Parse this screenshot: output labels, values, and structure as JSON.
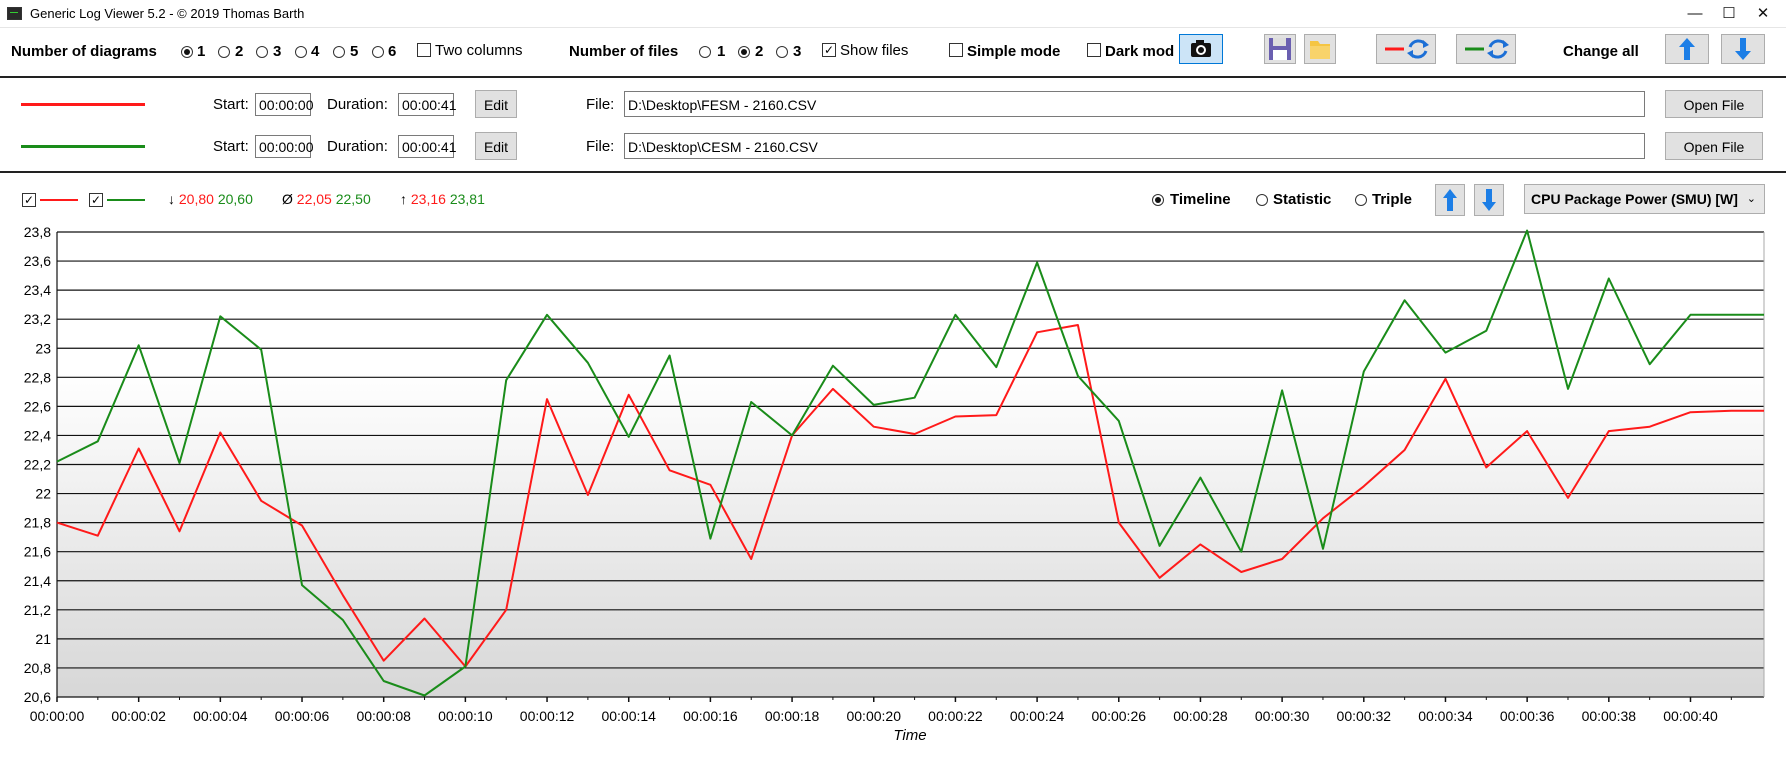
{
  "window": {
    "title": "Generic Log Viewer 5.2 - © 2019 Thomas Barth"
  },
  "toolbar": {
    "num_diagrams_label": "Number of diagrams",
    "diagram_options": [
      "1",
      "2",
      "3",
      "4",
      "5",
      "6"
    ],
    "diagram_selected": "1",
    "two_columns_label": "Two columns",
    "num_files_label": "Number of files",
    "file_options": [
      "1",
      "2",
      "3"
    ],
    "file_selected": "2",
    "show_files_label": "Show files",
    "simple_mode_label": "Simple mode",
    "dark_mode_label": "Dark mod",
    "change_all_label": "Change all"
  },
  "files": [
    {
      "color": "#ff1a1a",
      "start_label": "Start:",
      "start": "00:00:00",
      "duration_label": "Duration:",
      "duration": "00:00:41",
      "edit_label": "Edit",
      "file_label": "File:",
      "path": "D:\\Desktop\\FESM - 2160.CSV",
      "open_label": "Open File"
    },
    {
      "color": "#1a8c1a",
      "start_label": "Start:",
      "start": "00:00:00",
      "duration_label": "Duration:",
      "duration": "00:00:41",
      "edit_label": "Edit",
      "file_label": "File:",
      "path": "D:\\Desktop\\CESM - 2160.CSV",
      "open_label": "Open File"
    }
  ],
  "stats": {
    "min_symbol": "↓",
    "min_red": "20,80",
    "min_green": "20,60",
    "avg_symbol": "Ø",
    "avg_red": "22,05",
    "avg_green": "22,50",
    "max_symbol": "↑",
    "max_red": "23,16",
    "max_green": "23,81"
  },
  "view_modes": {
    "options": [
      "Timeline",
      "Statistic",
      "Triple"
    ],
    "selected": "Timeline"
  },
  "sensor_select": {
    "value": "CPU Package Power (SMU) [W]"
  },
  "colors": {
    "red": "#ff1a1a",
    "green": "#1a8c1a"
  },
  "chart_data": {
    "type": "line",
    "xlabel": "Time",
    "ylim": [
      20.6,
      23.8
    ],
    "xlim": [
      0,
      41.8
    ],
    "y_ticks": [
      "23,8",
      "23,6",
      "23,4",
      "23,2",
      "23",
      "22,8",
      "22,6",
      "22,4",
      "22,2",
      "22",
      "21,8",
      "21,6",
      "21,4",
      "21,2",
      "21",
      "20,8",
      "20,6"
    ],
    "x_ticks": [
      "00:00:00",
      "00:00:02",
      "00:00:04",
      "00:00:06",
      "00:00:08",
      "00:00:10",
      "00:00:12",
      "00:00:14",
      "00:00:16",
      "00:00:18",
      "00:00:20",
      "00:00:22",
      "00:00:24",
      "00:00:26",
      "00:00:28",
      "00:00:30",
      "00:00:32",
      "00:00:34",
      "00:00:36",
      "00:00:38",
      "00:00:40"
    ],
    "x": [
      0,
      1,
      2,
      3,
      4,
      5,
      6,
      7,
      8,
      9,
      10,
      11,
      12,
      13,
      14,
      15,
      16,
      17,
      18,
      19,
      20,
      21,
      22,
      23,
      24,
      25,
      26,
      27,
      28,
      29,
      30,
      31,
      32,
      33,
      34,
      35,
      36,
      37,
      38,
      39,
      40,
      41,
      41.8
    ],
    "series": [
      {
        "color": "red",
        "values": [
          21.8,
          21.71,
          22.31,
          21.74,
          22.42,
          21.95,
          21.78,
          21.3,
          20.85,
          21.14,
          20.81,
          21.2,
          22.65,
          21.99,
          22.68,
          22.16,
          22.06,
          21.55,
          22.4,
          22.72,
          22.46,
          22.41,
          22.53,
          22.54,
          23.11,
          23.16,
          21.8,
          21.42,
          21.65,
          21.46,
          21.55,
          21.83,
          22.05,
          22.3,
          22.79,
          22.18,
          22.43,
          21.97,
          22.43,
          22.46,
          22.56,
          22.57,
          22.57
        ]
      },
      {
        "color": "green",
        "values": [
          22.22,
          22.36,
          23.02,
          22.21,
          23.22,
          22.99,
          21.37,
          21.13,
          20.71,
          20.61,
          20.81,
          22.78,
          23.23,
          22.9,
          22.39,
          22.95,
          21.69,
          22.63,
          22.4,
          22.88,
          22.61,
          22.66,
          23.23,
          22.87,
          23.59,
          22.81,
          22.5,
          21.64,
          22.11,
          21.6,
          22.71,
          21.62,
          22.84,
          23.33,
          22.97,
          23.12,
          23.81,
          22.72,
          23.48,
          22.89,
          23.23,
          23.23,
          23.23
        ]
      }
    ]
  }
}
